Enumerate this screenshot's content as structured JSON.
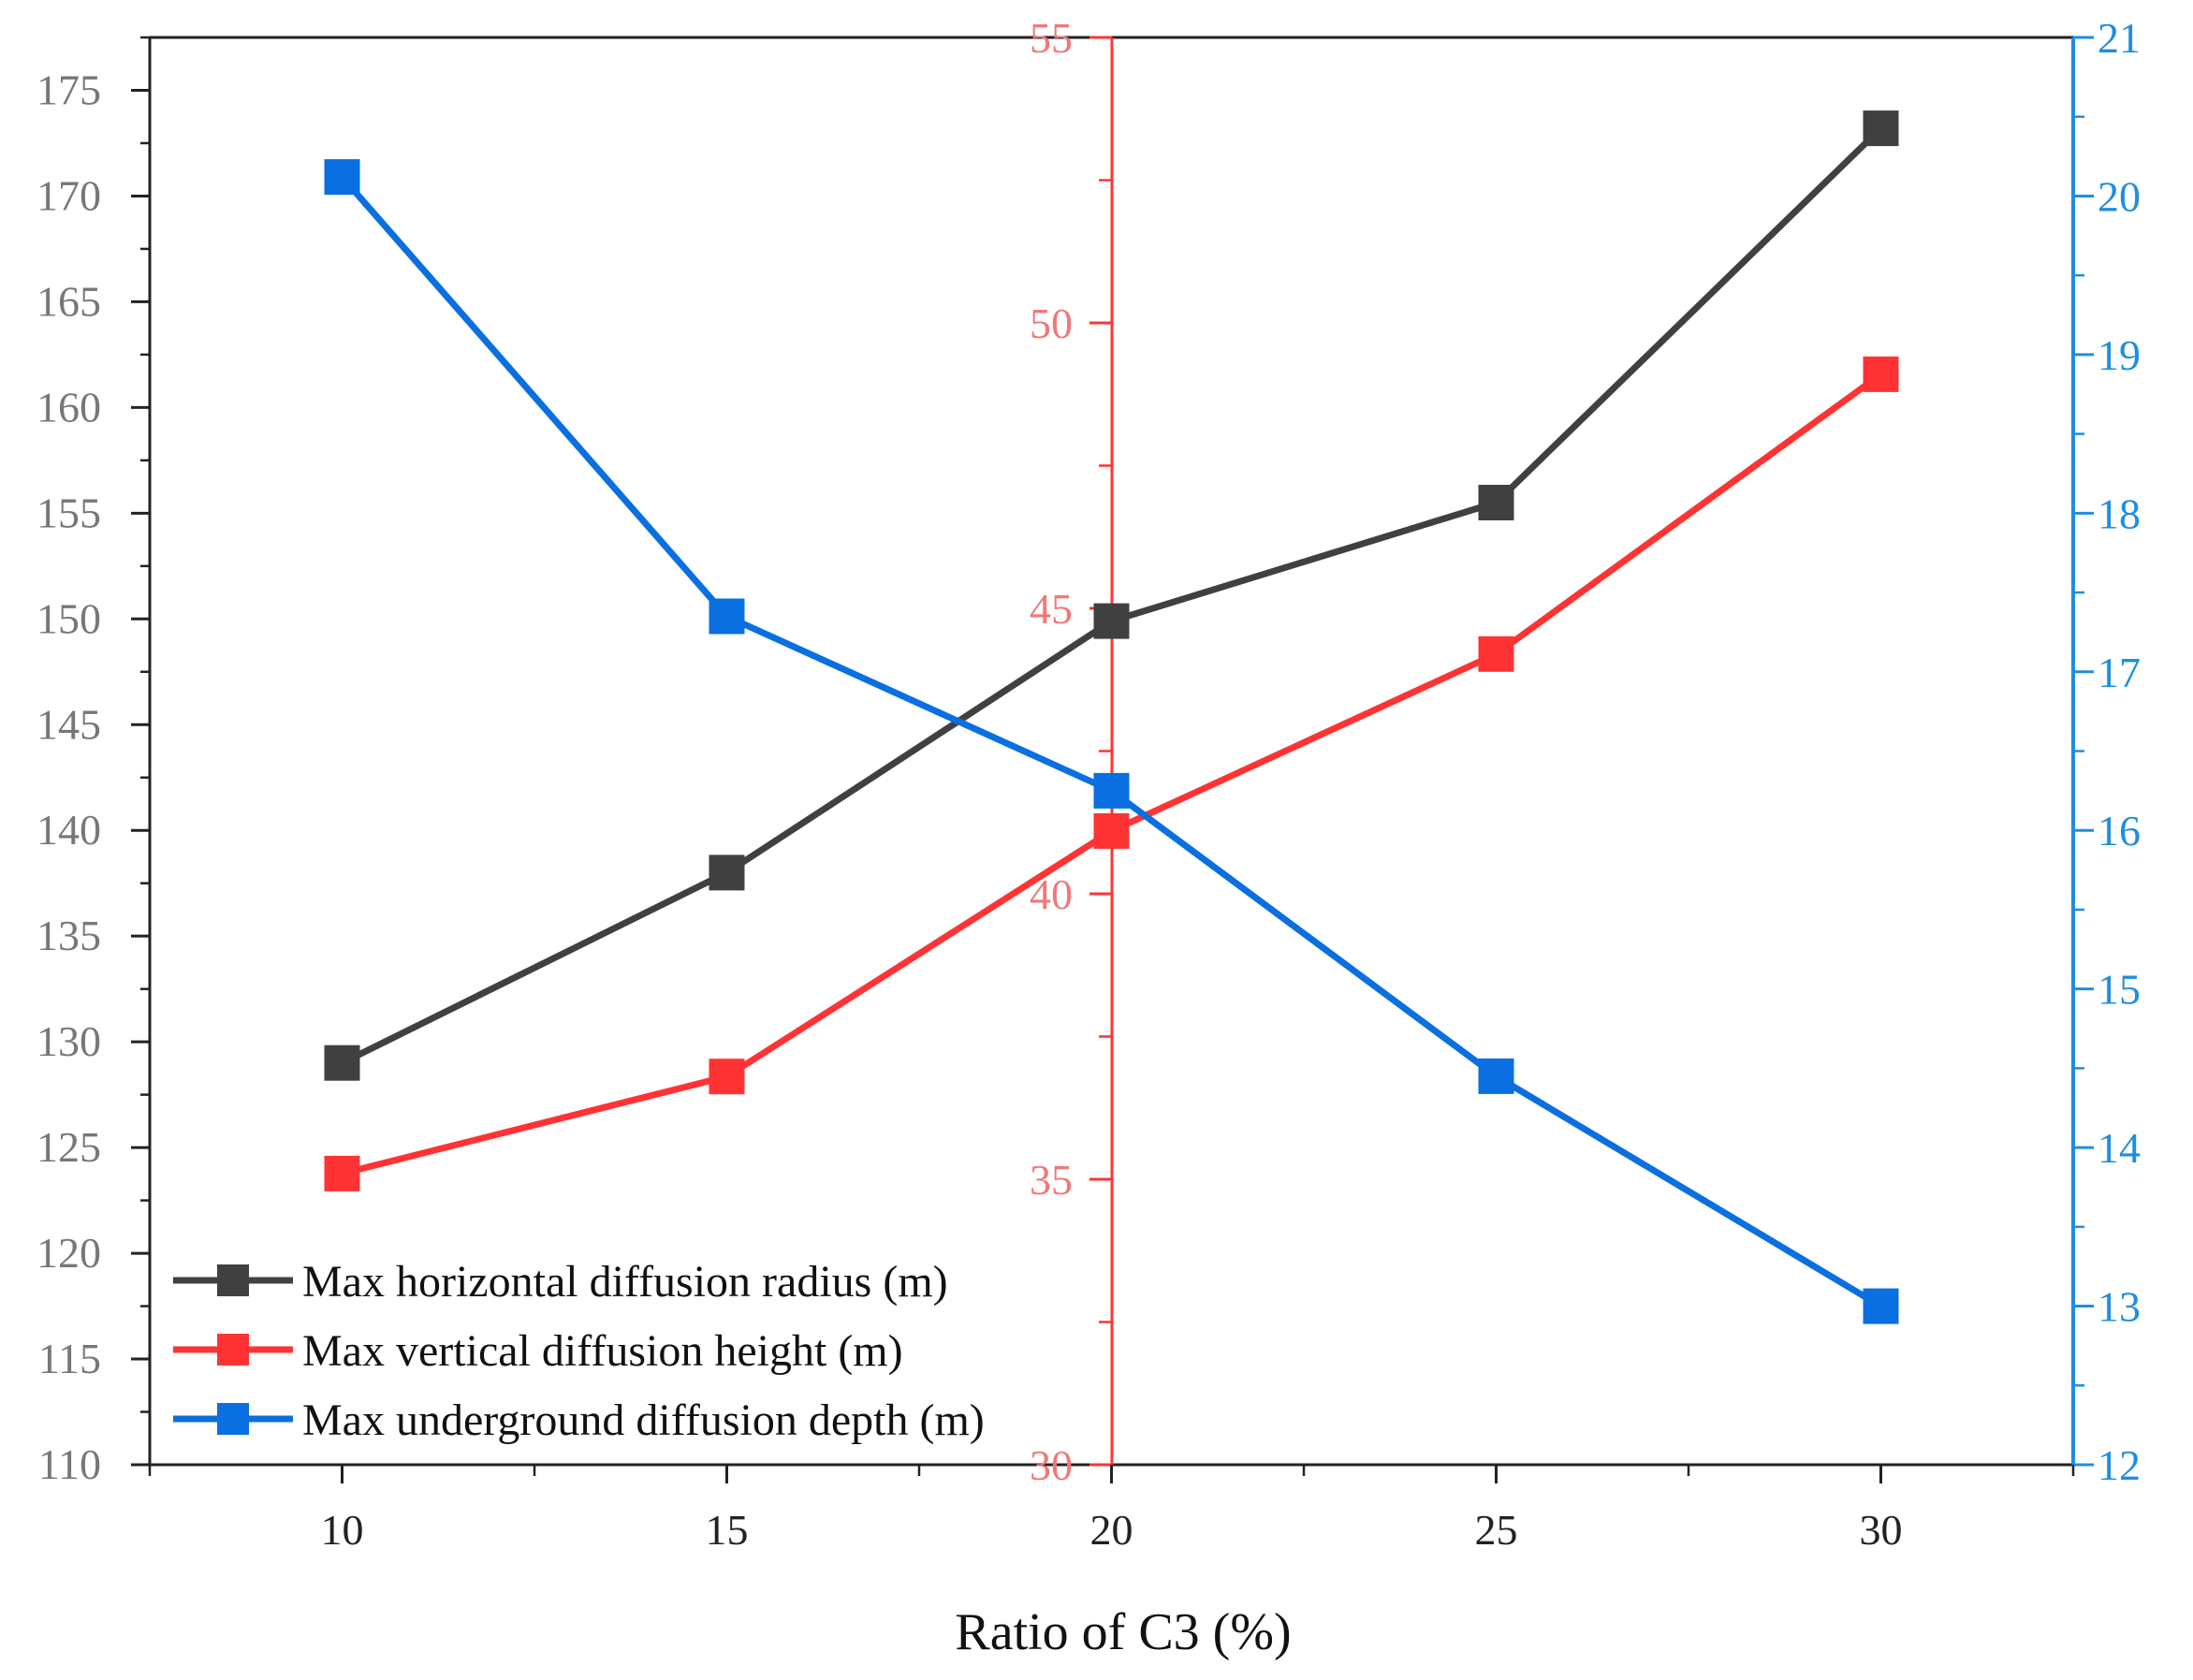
{
  "chart_data": {
    "type": "line",
    "title": "",
    "xlabel": "Ratio of C3 (%)",
    "x": [
      10,
      15,
      20,
      25,
      30
    ],
    "x_ticks": [
      "10",
      "15",
      "20",
      "25",
      "30"
    ],
    "xlim": [
      7.5,
      32.5
    ],
    "grid": false,
    "legend_position": "bottom-left",
    "axes": {
      "left": {
        "ylim": [
          110,
          177.5
        ],
        "ticks": [
          "110",
          "115",
          "120",
          "125",
          "130",
          "135",
          "140",
          "145",
          "150",
          "155",
          "160",
          "165",
          "170",
          "175"
        ],
        "color": "#777777"
      },
      "middle": {
        "ylim": [
          30,
          55
        ],
        "ticks": [
          "30",
          "35",
          "40",
          "45",
          "50",
          "55"
        ],
        "color": "#ff3333",
        "tick_color": "#f07878"
      },
      "right": {
        "ylim": [
          12,
          21
        ],
        "ticks": [
          "12",
          "13",
          "14",
          "15",
          "16",
          "17",
          "18",
          "19",
          "20",
          "21"
        ],
        "color": "#1e8ee0"
      }
    },
    "series": [
      {
        "name": "Max horizontal diffusion radius (m)",
        "axis": "left",
        "color": "#404040",
        "values": [
          129,
          138,
          149.9,
          155.5,
          173.2
        ]
      },
      {
        "name": "Max vertical diffusion height (m)",
        "axis": "middle",
        "color": "#ff3333",
        "values": [
          35.1,
          36.8,
          41.1,
          44.2,
          49.1
        ]
      },
      {
        "name": "Max underground diffusion depth (m)",
        "axis": "right",
        "color": "#0a6fe0",
        "values": [
          20.12,
          17.35,
          16.25,
          14.45,
          13.0
        ]
      }
    ]
  }
}
